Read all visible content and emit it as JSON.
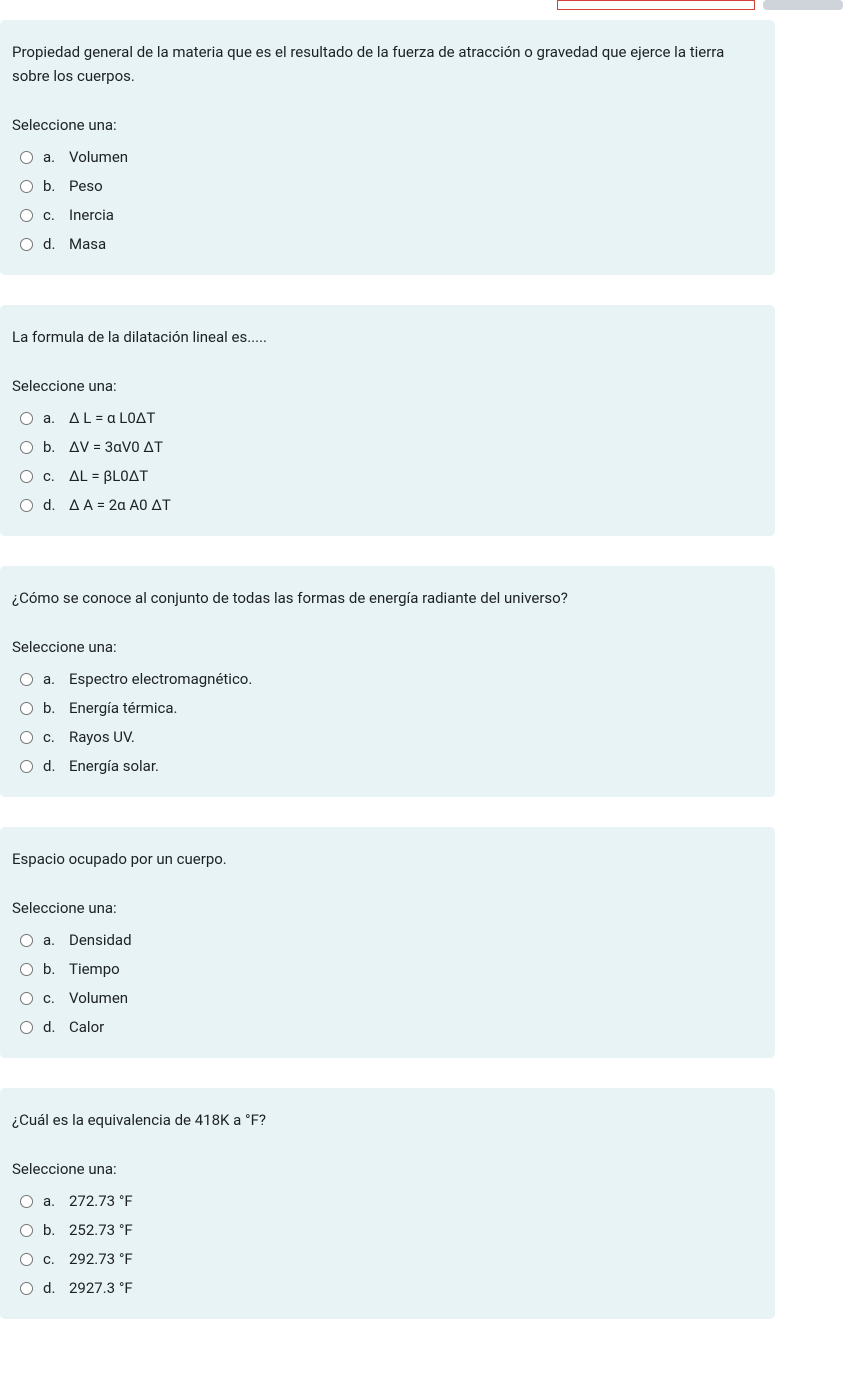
{
  "colors": {
    "card_bg": "#e7f3f5",
    "text": "#1d2125",
    "search_border": "#d43f3a",
    "btn_bg": "#ced4da"
  },
  "select_prompt": "Seleccione una:",
  "questions": [
    {
      "text": "Propiedad general de la materia que es el resultado de la fuerza de atracción o gravedad que ejerce la tierra sobre los cuerpos.",
      "options": [
        {
          "letter": "a.",
          "text": "Volumen"
        },
        {
          "letter": "b.",
          "text": "Peso"
        },
        {
          "letter": "c.",
          "text": "Inercia"
        },
        {
          "letter": "d.",
          "text": "Masa"
        }
      ]
    },
    {
      "text": "La formula de la dilatación lineal es.....",
      "options": [
        {
          "letter": "a.",
          "text": "Δ L = α L0ΔT"
        },
        {
          "letter": "b.",
          "text": "ΔV = 3αV0 ΔT"
        },
        {
          "letter": "c.",
          "text": "ΔL = βL0ΔT"
        },
        {
          "letter": "d.",
          "text": "Δ A = 2α A0 ΔT"
        }
      ]
    },
    {
      "text": "¿Cómo se conoce al conjunto de todas las formas de energía radiante del universo?",
      "options": [
        {
          "letter": "a.",
          "text": "Espectro electromagnético."
        },
        {
          "letter": "b.",
          "text": "Energía térmica."
        },
        {
          "letter": "c.",
          "text": "Rayos UV."
        },
        {
          "letter": "d.",
          "text": "Energía solar."
        }
      ]
    },
    {
      "text": "Espacio ocupado por un cuerpo.",
      "options": [
        {
          "letter": "a.",
          "text": "Densidad"
        },
        {
          "letter": "b.",
          "text": "Tiempo"
        },
        {
          "letter": "c.",
          "text": "Volumen"
        },
        {
          "letter": "d.",
          "text": "Calor"
        }
      ]
    },
    {
      "text": "¿Cuál es la equivalencia de 418K a °F?",
      "options": [
        {
          "letter": "a.",
          "text": "272.73 °F"
        },
        {
          "letter": "b.",
          "text": "252.73 °F"
        },
        {
          "letter": "c.",
          "text": "292.73 °F"
        },
        {
          "letter": "d.",
          "text": "2927.3 °F"
        }
      ]
    }
  ]
}
